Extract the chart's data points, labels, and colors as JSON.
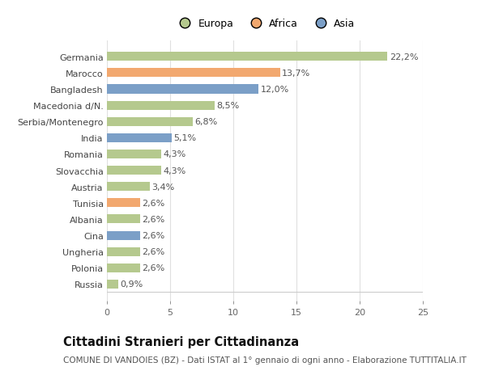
{
  "categories": [
    "Russia",
    "Polonia",
    "Ungheria",
    "Cina",
    "Albania",
    "Tunisia",
    "Austria",
    "Slovacchia",
    "Romania",
    "India",
    "Serbia/Montenegro",
    "Macedonia d/N.",
    "Bangladesh",
    "Marocco",
    "Germania"
  ],
  "values": [
    0.9,
    2.6,
    2.6,
    2.6,
    2.6,
    2.6,
    3.4,
    4.3,
    4.3,
    5.1,
    6.8,
    8.5,
    12.0,
    13.7,
    22.2
  ],
  "labels": [
    "0,9%",
    "2,6%",
    "2,6%",
    "2,6%",
    "2,6%",
    "2,6%",
    "3,4%",
    "4,3%",
    "4,3%",
    "5,1%",
    "6,8%",
    "8,5%",
    "12,0%",
    "13,7%",
    "22,2%"
  ],
  "continents": [
    "Europa",
    "Europa",
    "Europa",
    "Asia",
    "Europa",
    "Africa",
    "Europa",
    "Europa",
    "Europa",
    "Asia",
    "Europa",
    "Europa",
    "Asia",
    "Africa",
    "Europa"
  ],
  "colors": {
    "Europa": "#b5c98e",
    "Africa": "#f2a86f",
    "Asia": "#7b9fc7"
  },
  "background_color": "#ffffff",
  "plot_bg_color": "#ffffff",
  "title_main": "Cittadini Stranieri per Cittadinanza",
  "title_sub": "COMUNE DI VANDOIES (BZ) - Dati ISTAT al 1° gennaio di ogni anno - Elaborazione TUTTITALIA.IT",
  "xlim": [
    0,
    25
  ],
  "xticks": [
    0,
    5,
    10,
    15,
    20,
    25
  ],
  "grid_color": "#e0e0e0",
  "bar_height": 0.55,
  "label_fontsize": 8,
  "tick_fontsize": 8,
  "ytick_fontsize": 8,
  "title_fontsize": 10.5,
  "subtitle_fontsize": 7.5,
  "legend_fontsize": 9
}
